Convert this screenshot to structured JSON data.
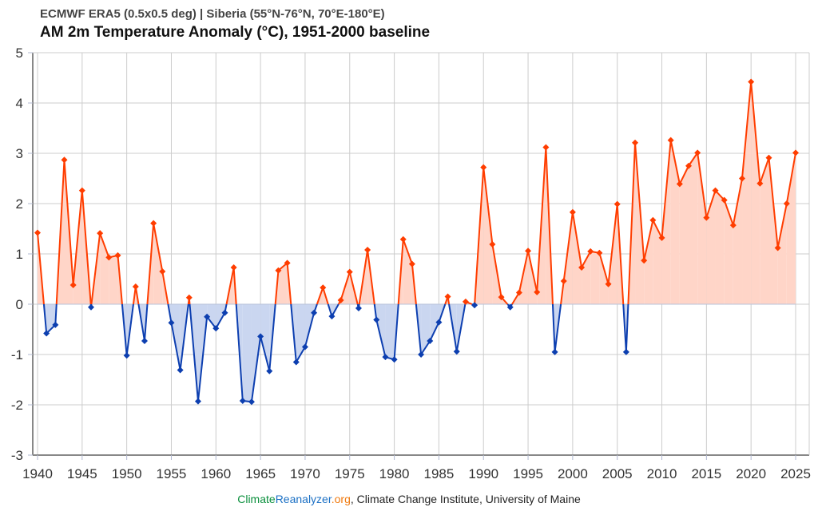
{
  "chart_data": {
    "type": "area",
    "subtitle": "ECMWF ERA5 (0.5x0.5 deg) | Siberia (55°N-76°N, 70°E-180°E)",
    "title": "AM 2m Temperature Anomaly (°C), 1951-2000 baseline",
    "xlabel": "",
    "ylabel": "",
    "xlim": [
      1940,
      2025
    ],
    "ylim": [
      -3,
      5
    ],
    "x_ticks": [
      "1940",
      "1945",
      "1950",
      "1955",
      "1960",
      "1965",
      "1970",
      "1975",
      "1980",
      "1985",
      "1990",
      "1995",
      "2000",
      "2005",
      "2010",
      "2015",
      "2020",
      "2025"
    ],
    "y_ticks": [
      "5",
      "4",
      "3",
      "2",
      "1",
      "0",
      "-1",
      "-2",
      "-3"
    ],
    "grid": true,
    "colors": {
      "positive": "#ff3d00",
      "negative": "#0d3fb0",
      "positive_fill": "#ffd5c8",
      "negative_fill": "#cad6f0"
    },
    "x": [
      1940,
      1941,
      1942,
      1943,
      1944,
      1945,
      1946,
      1947,
      1948,
      1949,
      1950,
      1951,
      1952,
      1953,
      1954,
      1955,
      1956,
      1957,
      1958,
      1959,
      1960,
      1961,
      1962,
      1963,
      1964,
      1965,
      1966,
      1967,
      1968,
      1969,
      1970,
      1971,
      1972,
      1973,
      1974,
      1975,
      1976,
      1977,
      1978,
      1979,
      1980,
      1981,
      1982,
      1983,
      1984,
      1985,
      1986,
      1987,
      1988,
      1989,
      1990,
      1991,
      1992,
      1993,
      1994,
      1995,
      1996,
      1997,
      1998,
      1999,
      2000,
      2001,
      2002,
      2003,
      2004,
      2005,
      2006,
      2007,
      2008,
      2009,
      2010,
      2011,
      2012,
      2013,
      2014,
      2015,
      2016,
      2017,
      2018,
      2019,
      2020,
      2021,
      2022,
      2023,
      2024,
      2025
    ],
    "values": [
      1.42,
      -0.58,
      -0.41,
      2.87,
      0.38,
      2.26,
      -0.06,
      1.41,
      0.93,
      0.97,
      -1.02,
      0.35,
      -0.73,
      1.61,
      0.65,
      -0.37,
      -1.31,
      0.13,
      -1.93,
      -0.25,
      -0.48,
      -0.17,
      0.73,
      -1.92,
      -1.94,
      -0.64,
      -1.33,
      0.67,
      0.82,
      -1.15,
      -0.85,
      -0.17,
      0.33,
      -0.24,
      0.08,
      0.64,
      -0.08,
      1.08,
      -0.31,
      -1.05,
      -1.1,
      1.29,
      0.8,
      -1.0,
      -0.73,
      -0.36,
      0.15,
      -0.94,
      0.05,
      -0.02,
      2.72,
      1.19,
      0.14,
      -0.06,
      0.23,
      1.06,
      0.24,
      3.12,
      -0.95,
      0.46,
      1.83,
      0.73,
      1.05,
      1.02,
      0.4,
      1.99,
      -0.95,
      3.21,
      0.87,
      1.67,
      1.32,
      3.26,
      2.39,
      2.75,
      3.01,
      1.72,
      2.26,
      2.07,
      1.57,
      2.5,
      4.42,
      2.4,
      2.91,
      1.12,
      2.0,
      3.01
    ]
  },
  "footer": {
    "part1": "Climate",
    "part2": "Reanalyzer",
    "part3": ".org",
    "rest": ", Climate Change Institute, University of Maine"
  }
}
